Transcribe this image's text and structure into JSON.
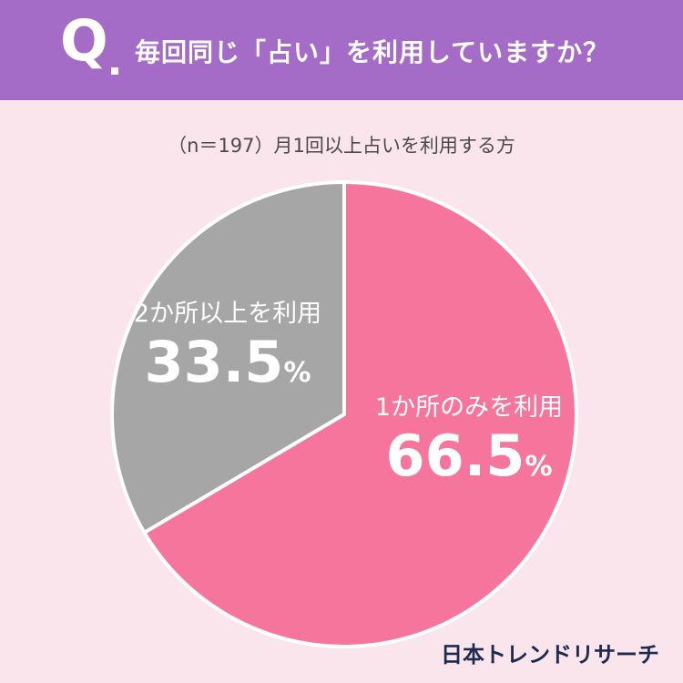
{
  "header": {
    "q_mark": "Q",
    "question": "毎回同じ「占い」を利用していますか？"
  },
  "subtitle": "（n＝197）月1回以上占いを利用する方",
  "chart_data": {
    "type": "pie",
    "slices": [
      {
        "label": "1か所のみを利用",
        "value": 66.5,
        "display_value": "66.5",
        "unit": "%",
        "color": "#f6759d"
      },
      {
        "label": "2か所以上を利用",
        "value": 33.5,
        "display_value": "33.5",
        "unit": "%",
        "color": "#a6a6a6"
      }
    ],
    "start_angle": "top (12 o'clock), clockwise"
  },
  "brand": "日本トレンドリサーチ"
}
